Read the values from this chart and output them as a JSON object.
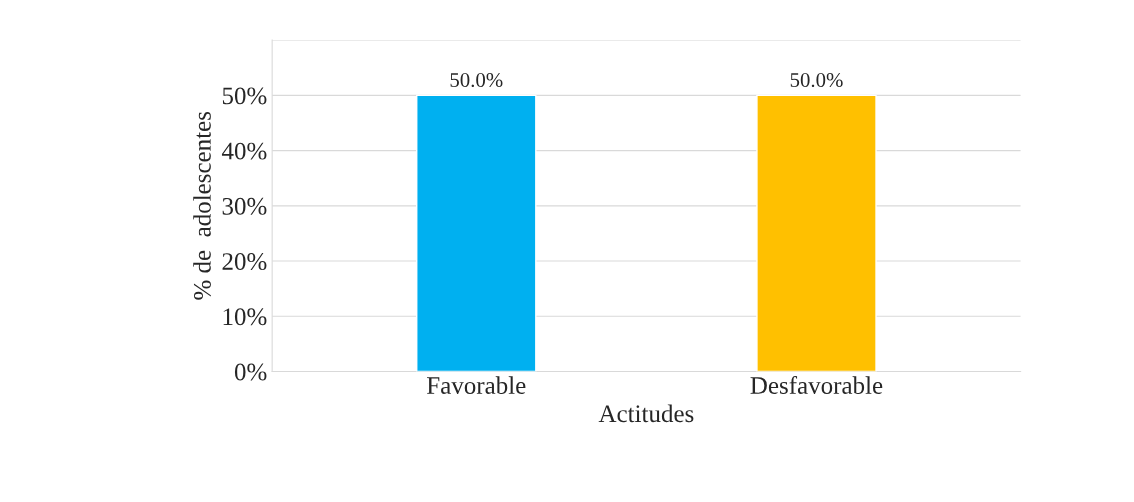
{
  "chart_data": {
    "type": "bar",
    "xlabel": "Actitudes",
    "ylabel": "% de  adolescentes",
    "categories": [
      "Favorable",
      "Desfavorable"
    ],
    "values": [
      50.0,
      50.0
    ],
    "colors": [
      "#00b0f0",
      "#ffc000"
    ],
    "value_labels": [
      "50.0%",
      "50.0%"
    ],
    "ylim": [
      0,
      60
    ],
    "yticks": [
      {
        "value": 0,
        "label": "0%"
      },
      {
        "value": 10,
        "label": "10%"
      },
      {
        "value": 20,
        "label": "20%"
      },
      {
        "value": 30,
        "label": "30%"
      },
      {
        "value": 40,
        "label": "40%"
      },
      {
        "value": 50,
        "label": "50%"
      },
      {
        "value": 60,
        "label": null
      }
    ],
    "grid": "y"
  }
}
